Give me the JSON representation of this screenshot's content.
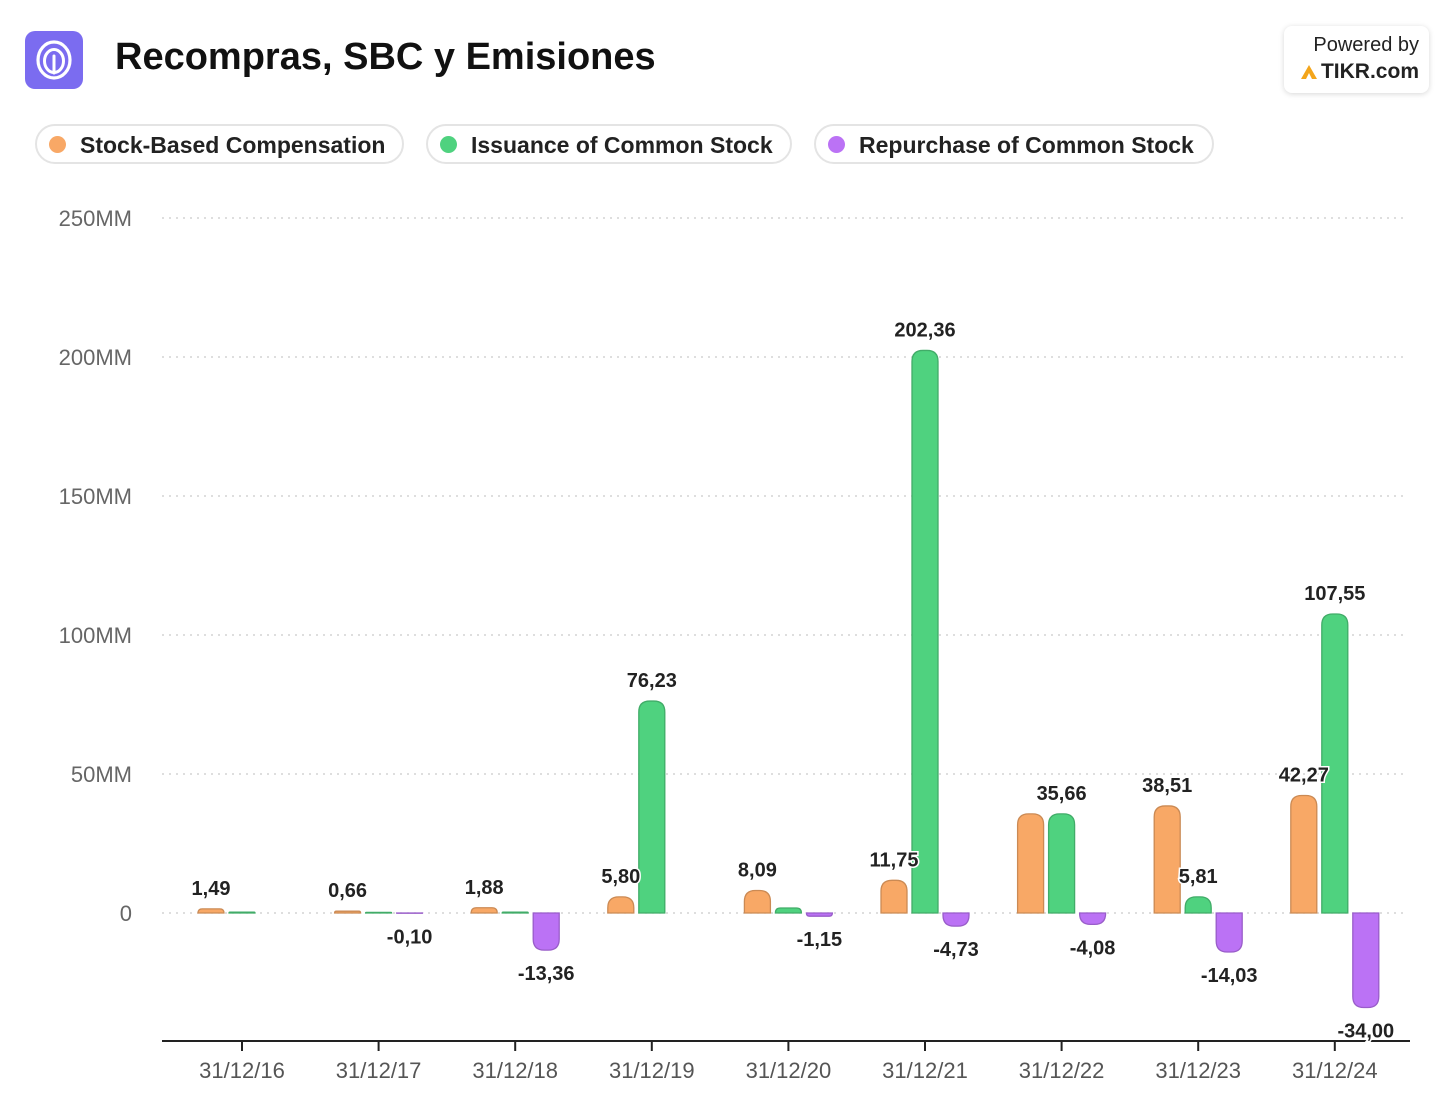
{
  "header": {
    "title": "Recompras, SBC y Emisiones",
    "powered_by": "Powered by",
    "brand": "TIKR.com",
    "logo_icon": "concentric-rings-icon",
    "brand_icon": "tikr-logo-icon"
  },
  "chart_data": {
    "type": "bar",
    "title": "Recompras, SBC y Emisiones",
    "categories": [
      "31/12/16",
      "31/12/17",
      "31/12/18",
      "31/12/19",
      "31/12/20",
      "31/12/21",
      "31/12/22",
      "31/12/23",
      "31/12/24"
    ],
    "series": [
      {
        "name": "Stock-Based Compensation",
        "color": "#f8a866",
        "values": [
          1.49,
          0.66,
          1.88,
          5.8,
          8.09,
          11.75,
          35.66,
          38.51,
          42.27
        ],
        "labels": [
          "1,49",
          "0,66",
          "1,88",
          "5,80",
          "8,09",
          "11,75",
          "",
          "38,51",
          "42,27"
        ]
      },
      {
        "name": "Issuance of Common Stock",
        "color": "#4fd27f",
        "values": [
          0.3,
          0.2,
          0.3,
          76.23,
          1.8,
          202.36,
          35.66,
          5.81,
          107.55
        ],
        "labels": [
          "",
          "",
          "",
          "76,23",
          "",
          "202,36",
          "35,66",
          "5,81",
          "107,55"
        ]
      },
      {
        "name": "Repurchase of Common Stock",
        "color": "#bb72f5",
        "values": [
          0,
          -0.1,
          -13.36,
          0,
          -1.15,
          -4.73,
          -4.08,
          -14.03,
          -34.0
        ],
        "labels": [
          "",
          "-0,10",
          "-13,36",
          "",
          "-1,15",
          "-4,73",
          "-4,08",
          "-14,03",
          "-34,00"
        ]
      }
    ],
    "yticks": [
      "250MM",
      "200MM",
      "150MM",
      "100MM",
      "50MM",
      "0"
    ],
    "ytick_values": [
      250,
      200,
      150,
      100,
      50,
      0
    ],
    "ylim": [
      -45,
      250
    ],
    "grid": true,
    "legend": "top-left"
  }
}
